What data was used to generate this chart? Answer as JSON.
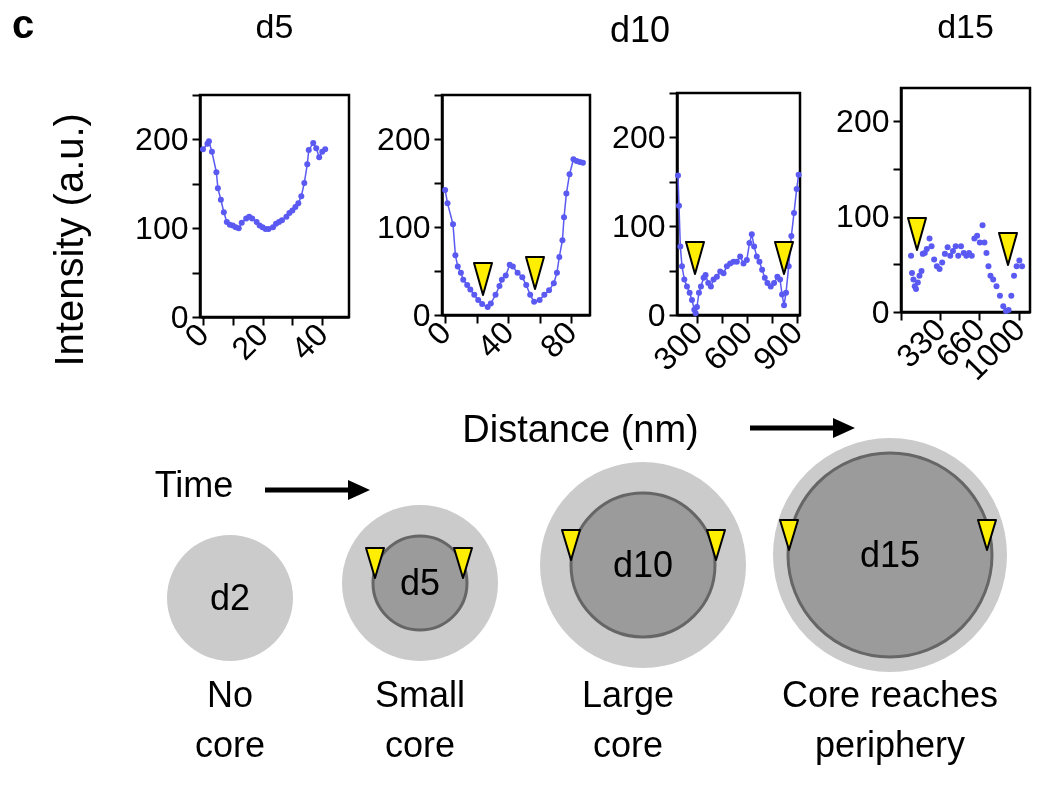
{
  "chart_data": [
    {
      "type": "line",
      "title": "d5",
      "ylabel": "Intensity (a.u.)",
      "annotations": [
        "c"
      ],
      "marker": "circle",
      "xlim": [
        -1,
        49
      ],
      "ylim": [
        0,
        250
      ],
      "xticks": [
        0,
        {
          "value": 10,
          "label": null
        },
        20,
        {
          "value": 30,
          "label": null
        },
        40
      ],
      "yticks": [
        0,
        {
          "value": 50,
          "label": null
        },
        100,
        {
          "value": 150,
          "label": null
        },
        200,
        {
          "value": 250,
          "label": null
        }
      ],
      "x": [
        0,
        1.5,
        2,
        3,
        4.5,
        5,
        6,
        7,
        8,
        9,
        10,
        11,
        12,
        13,
        14.5,
        15.5,
        16.5,
        18,
        19,
        20,
        21,
        22,
        23.5,
        24.5,
        25.5,
        26.5,
        28,
        29,
        30,
        31,
        32,
        33,
        34,
        35,
        35.5,
        37,
        38,
        39,
        40,
        41
      ],
      "series": [
        {
          "color": "#5a5af2",
          "values": [
            189,
            195,
            198,
            186,
            163,
            145,
            132,
            118,
            107,
            104,
            103,
            101,
            100,
            106,
            111,
            113,
            111,
            107,
            103,
            101,
            99,
            99,
            101,
            105,
            107,
            109,
            113,
            117,
            120,
            124,
            128,
            136,
            151,
            172,
            188,
            196,
            190,
            180,
            186,
            189
          ]
        }
      ]
    },
    {
      "type": "line",
      "xlabel": "Distance (nm)",
      "marker": "circle",
      "xlim": [
        -2,
        92
      ],
      "ylim": [
        0,
        250
      ],
      "xticks": [
        0,
        {
          "value": 20,
          "label": null
        },
        40,
        {
          "value": 60,
          "label": null
        },
        80
      ],
      "yticks": [
        0,
        {
          "value": 50,
          "label": null
        },
        100,
        {
          "value": 150,
          "label": null
        },
        200,
        {
          "value": 250,
          "label": null
        }
      ],
      "x": [
        0,
        1.5,
        5,
        6.5,
        8,
        10,
        11.5,
        14,
        16,
        18.5,
        21,
        23.5,
        27,
        29,
        32,
        34.5,
        36,
        38.5,
        41,
        43,
        46,
        49,
        51.5,
        54,
        56.5,
        60,
        63,
        66,
        69,
        71,
        72.5,
        74.5,
        75.5,
        77,
        79,
        81.5,
        83.5,
        85.5,
        87.5
      ],
      "series": [
        {
          "color": "#5a5af2",
          "values": [
            142,
            127,
            103,
            68,
            55,
            48,
            40,
            34,
            29,
            23,
            17,
            12.5,
            9,
            13,
            23,
            33,
            40,
            45,
            57,
            55,
            48,
            43,
            34,
            23,
            15,
            17,
            23,
            28,
            36,
            48,
            66,
            85,
            111,
            138,
            160,
            177,
            175,
            174,
            173
          ]
        }
      ]
    },
    {
      "type": "line",
      "marker": "circle",
      "xlim": [
        180,
        920
      ],
      "ylim": [
        0,
        250
      ],
      "xticks": [
        300,
        {
          "value": 450,
          "label": null
        },
        600,
        {
          "value": 750,
          "label": null
        },
        900
      ],
      "yticks": [
        0,
        {
          "value": 50,
          "label": null
        },
        100,
        {
          "value": 150,
          "label": null
        },
        200,
        {
          "value": 250,
          "label": null
        }
      ],
      "x": [
        186,
        192,
        200,
        210,
        224,
        240,
        256,
        270,
        284,
        292,
        300,
        312,
        324,
        340,
        352,
        368,
        384,
        400,
        420,
        440,
        460,
        480,
        500,
        520,
        540,
        560,
        580,
        600,
        616,
        630,
        644,
        660,
        676,
        692,
        708,
        724,
        744,
        764,
        784,
        800,
        812,
        824,
        836,
        852,
        868,
        884,
        900,
        912
      ],
      "series": [
        {
          "color": "#5a5af2",
          "values": [
            157,
            123,
            77,
            55,
            40,
            32,
            25,
            17,
            6,
            2,
            9,
            25,
            32,
            42,
            45,
            36,
            32,
            40,
            43,
            49,
            47,
            55,
            58,
            60,
            60,
            66,
            58,
            62,
            81,
            91,
            77,
            66,
            60,
            51,
            42,
            36,
            32,
            36,
            43,
            40,
            23,
            11,
            25,
            55,
            89,
            115,
            142,
            158
          ]
        }
      ]
    },
    {
      "type": "scatter",
      "title": "d15",
      "marker": "circle",
      "xlim": [
        0,
        1090
      ],
      "ylim": [
        0,
        235
      ],
      "xticks": [
        {
          "value": 0,
          "label": null
        },
        330,
        660,
        1000
      ],
      "yticks": [
        0,
        {
          "value": 50,
          "label": null
        },
        100,
        {
          "value": 150,
          "label": null
        },
        200
      ],
      "x": [
        85,
        93,
        105,
        116,
        127,
        142,
        156,
        173,
        184,
        201,
        218,
        241,
        258,
        280,
        303,
        326,
        348,
        371,
        394,
        416,
        439,
        462,
        484,
        507,
        530,
        552,
        575,
        598,
        620,
        643,
        666,
        689,
        705,
        722,
        739,
        756,
        779,
        807,
        836,
        864,
        887,
        909,
        932,
        955,
        977,
        1000,
        1023
      ],
      "series": [
        {
          "color": "#5a5af2",
          "values": [
            59,
            41,
            34,
            27,
            24,
            31,
            38,
            43,
            61,
            62,
            66,
            77,
            69,
            55,
            48,
            45,
            52,
            61,
            68,
            59,
            64,
            69,
            59,
            69,
            62,
            59,
            62,
            59,
            77,
            80,
            73,
            91,
            73,
            62,
            48,
            38,
            34,
            27,
            17,
            6,
            1,
            2,
            17,
            38,
            48,
            54,
            48
          ]
        }
      ]
    },
    {
      "type": "other",
      "annotations": [
        "d10",
        "Time",
        "d2",
        "d5",
        "d10",
        "d15",
        "No core",
        "Small core",
        "Large core",
        "Core reaches periphery"
      ]
    }
  ]
}
